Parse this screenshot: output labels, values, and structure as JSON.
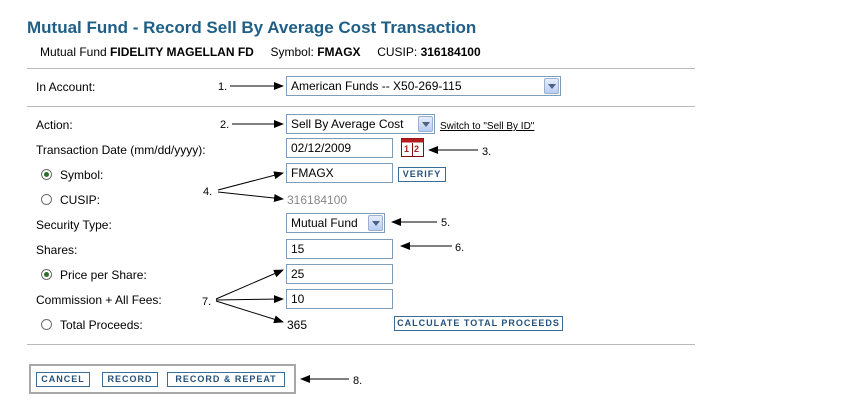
{
  "page": {
    "title": "Mutual Fund - Record Sell By Average Cost Transaction",
    "fund_label": "Mutual Fund",
    "fund_name": "FIDELITY MAGELLAN FD",
    "symbol_label": "Symbol:",
    "symbol_value": "FMAGX",
    "cusip_label": "CUSIP:",
    "cusip_value": "316184100"
  },
  "form": {
    "account_label": "In Account:",
    "account_value": "American Funds -- X50-269-115",
    "action_label": "Action:",
    "action_value": "Sell By Average Cost",
    "switch_link": "Switch to \"Sell By ID\"",
    "date_label": "Transaction Date (mm/dd/yyyy):",
    "date_value": "02/12/2009",
    "symbol_label": "Symbol:",
    "symbol_value": "FMAGX",
    "verify_button": "VERIFY",
    "cusip_label": "CUSIP:",
    "cusip_value": "316184100",
    "security_type_label": "Security Type:",
    "security_type_value": "Mutual Fund",
    "shares_label": "Shares:",
    "shares_value": "15",
    "price_label": "Price per Share:",
    "price_value": "25",
    "commission_label": "Commission + All Fees:",
    "commission_value": "10",
    "total_label": "Total Proceeds:",
    "total_value": "365",
    "calculate_button": "CALCULATE TOTAL PROCEEDS"
  },
  "buttons": {
    "cancel": "CANCEL",
    "record": "RECORD",
    "record_repeat": "RECORD & REPEAT"
  },
  "annotations": {
    "n1": "1.",
    "n2": "2.",
    "n3": "3.",
    "n4": "4.",
    "n5": "5.",
    "n6": "6.",
    "n7": "7.",
    "n8": "8."
  },
  "icons": {
    "calendar": "calendar-icon",
    "dropdown": "chevron-down-icon",
    "radio": "radio-button"
  },
  "colors": {
    "title": "#1f5f86",
    "button_text": "#24527c",
    "button_border": "#386c99"
  }
}
